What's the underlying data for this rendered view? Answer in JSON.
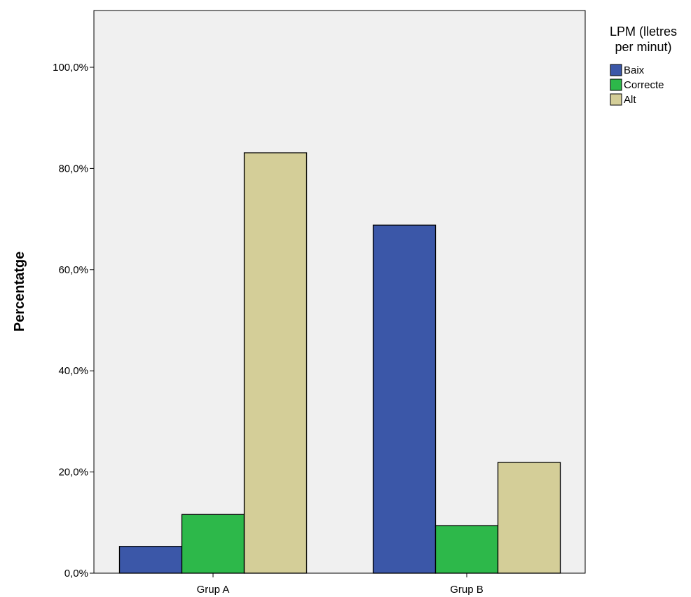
{
  "chart_data": {
    "type": "bar",
    "title": "",
    "xlabel": "",
    "ylabel": "Percentatge",
    "categories": [
      "Grup A",
      "Grup B"
    ],
    "series": [
      {
        "name": "Baix",
        "values": [
          5.3,
          68.8
        ],
        "color": "#3b57a8"
      },
      {
        "name": "Correcte",
        "values": [
          11.6,
          9.4
        ],
        "color": "#2db84a"
      },
      {
        "name": "Alt",
        "values": [
          83.1,
          21.9
        ],
        "color": "#d4ce98"
      }
    ],
    "ylim": [
      0,
      100
    ],
    "yticks": [
      "0,0%",
      "20,0%",
      "40,0%",
      "60,0%",
      "80,0%",
      "100,0%"
    ],
    "legend": {
      "title_lines": [
        "LPM (lletres",
        "per minut)"
      ],
      "placement": "right"
    },
    "grid": false,
    "plot_background": "#f0f0f0"
  }
}
